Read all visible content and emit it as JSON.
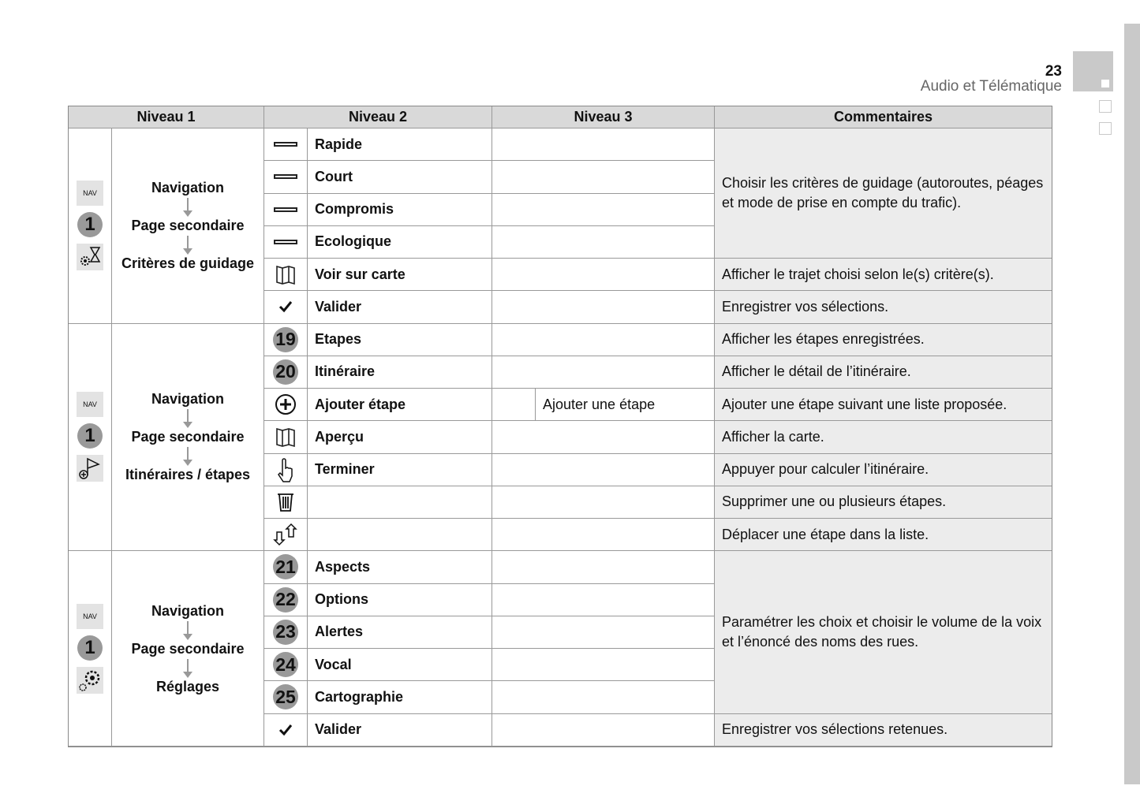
{
  "header": {
    "page_number": "23",
    "title": "Audio et Télématique"
  },
  "columns": [
    "Niveau 1",
    "Niveau 2",
    "Niveau 3",
    "Commentaires"
  ],
  "groups": [
    {
      "nav": "NAV",
      "step": "1",
      "icon": "gear-hourglass-icon",
      "path": [
        "Navigation",
        "Page secondaire",
        "Critères de guidage"
      ]
    },
    {
      "nav": "NAV",
      "step": "1",
      "icon": "flag-plus-icon",
      "path": [
        "Navigation",
        "Page secondaire",
        "Itinéraires / étapes"
      ]
    },
    {
      "nav": "NAV",
      "step": "1",
      "icon": "gear-settings-icon",
      "path": [
        "Navigation",
        "Page secondaire",
        "Réglages"
      ]
    }
  ],
  "rows": [
    {
      "icon": "bar-icon",
      "label": "Rapide",
      "level3": ""
    },
    {
      "icon": "bar-icon",
      "label": "Court",
      "level3": ""
    },
    {
      "icon": "bar-icon",
      "label": "Compromis",
      "level3": ""
    },
    {
      "icon": "bar-icon",
      "label": "Ecologique",
      "level3": ""
    },
    {
      "icon": "map-icon",
      "label": "Voir sur carte",
      "level3": ""
    },
    {
      "icon": "check-icon",
      "label": "Valider",
      "level3": ""
    },
    {
      "icon": "number-icon",
      "number": "19",
      "label": "Etapes",
      "level3": ""
    },
    {
      "icon": "number-icon",
      "number": "20",
      "label": "Itinéraire",
      "level3": ""
    },
    {
      "icon": "plus-circle-icon",
      "label": "Ajouter étape",
      "level3": "Ajouter une étape"
    },
    {
      "icon": "map-icon",
      "label": "Aperçu",
      "level3": ""
    },
    {
      "icon": "hand-pointer-icon",
      "label": "Terminer",
      "level3": ""
    },
    {
      "icon": "trash-icon",
      "label": "",
      "level3": ""
    },
    {
      "icon": "move-arrows-icon",
      "label": "",
      "level3": ""
    },
    {
      "icon": "number-icon",
      "number": "21",
      "label": "Aspects",
      "level3": ""
    },
    {
      "icon": "number-icon",
      "number": "22",
      "label": "Options",
      "level3": ""
    },
    {
      "icon": "number-icon",
      "number": "23",
      "label": "Alertes",
      "level3": ""
    },
    {
      "icon": "number-icon",
      "number": "24",
      "label": "Vocal",
      "level3": ""
    },
    {
      "icon": "number-icon",
      "number": "25",
      "label": "Cartographie",
      "level3": ""
    },
    {
      "icon": "check-icon",
      "label": "Valider",
      "level3": ""
    }
  ],
  "comments": [
    {
      "text": "Choisir les critères de guidage (autoroutes, péages et mode de prise en compte du trafic).",
      "rows": 4
    },
    {
      "text": "Afficher le trajet choisi selon le(s) critère(s).",
      "rows": 1
    },
    {
      "text": "Enregistrer vos sélections.",
      "rows": 1
    },
    {
      "text": "Afficher les étapes enregistrées.",
      "rows": 1
    },
    {
      "text": "Afficher le détail de l’itinéraire.",
      "rows": 1
    },
    {
      "text": "Ajouter une étape suivant une liste proposée.",
      "rows": 1
    },
    {
      "text": "Afficher la carte.",
      "rows": 1
    },
    {
      "text": "Appuyer pour calculer l’itinéraire.",
      "rows": 1
    },
    {
      "text": "Supprimer une ou plusieurs étapes.",
      "rows": 1
    },
    {
      "text": "Déplacer une étape dans la liste.",
      "rows": 1
    },
    {
      "text": "Paramétrer les choix et choisir le volume de la voix et l’énoncé des noms des rues.",
      "rows": 5
    },
    {
      "text": "Enregistrer vos sélections retenues.",
      "rows": 1
    }
  ]
}
